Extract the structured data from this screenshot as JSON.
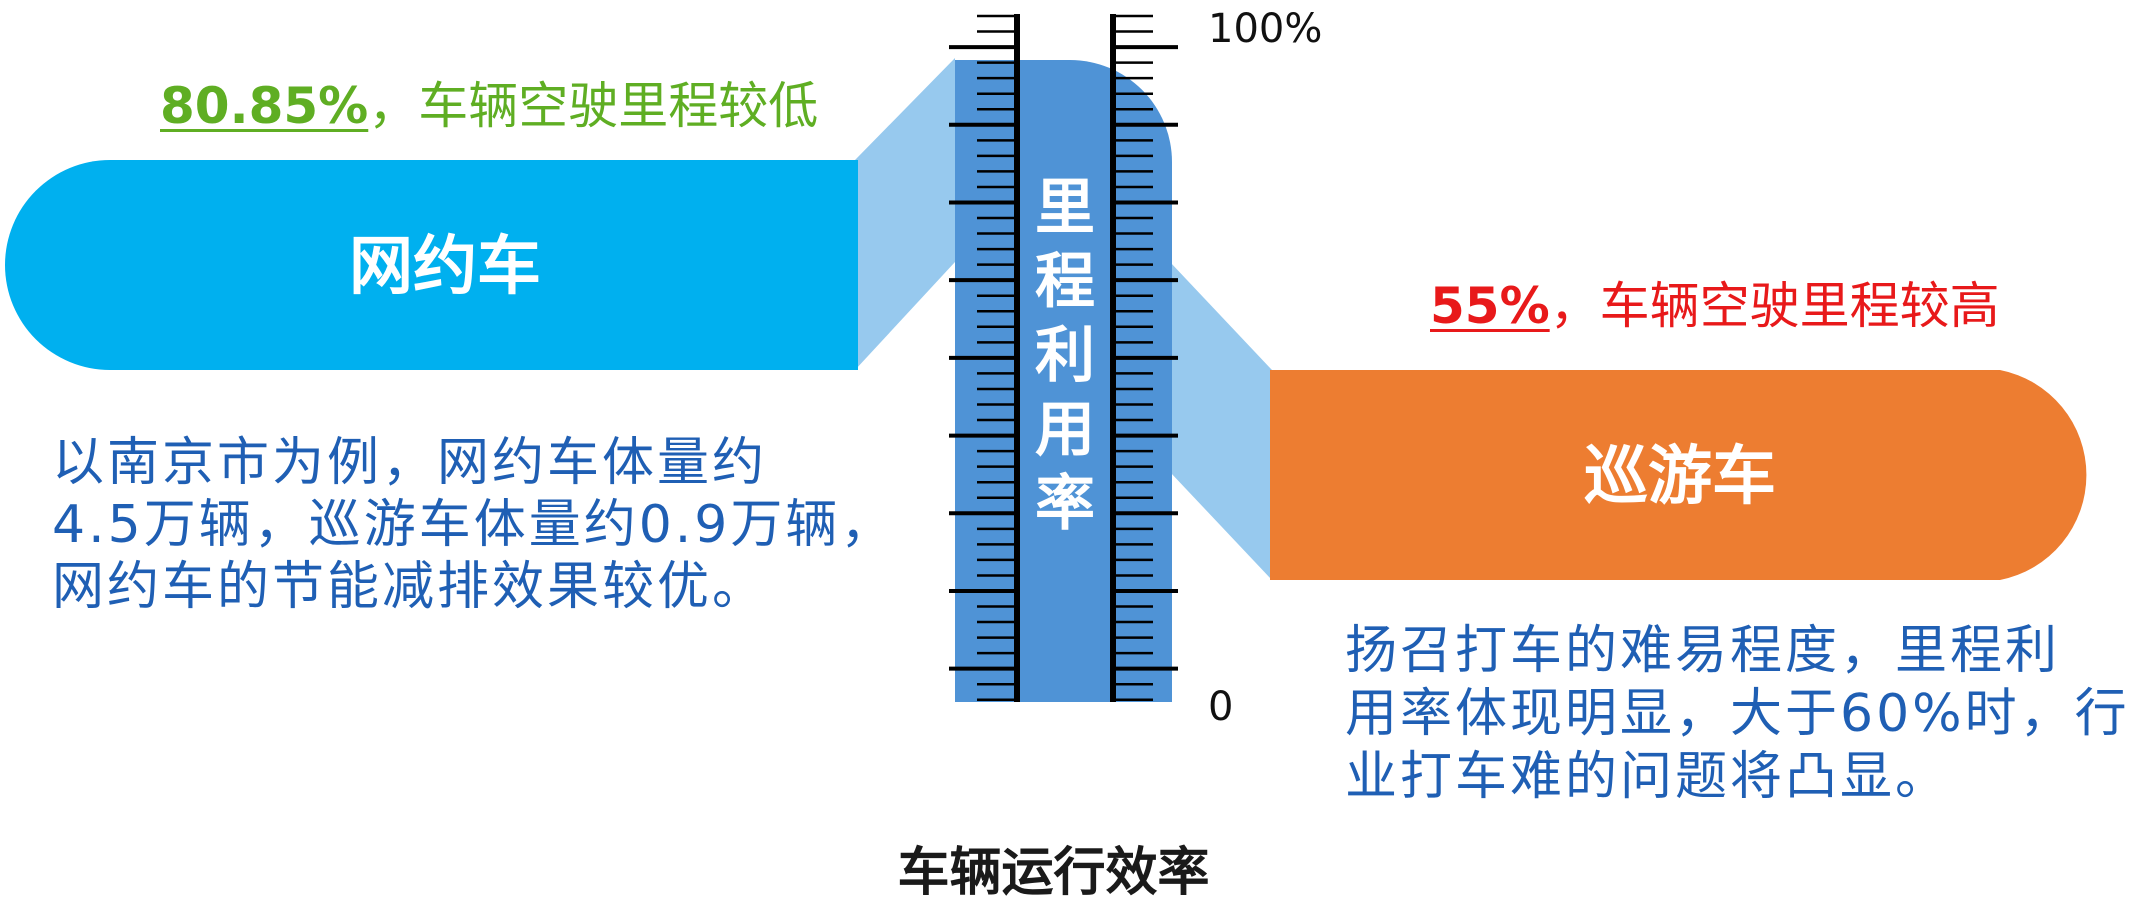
{
  "title": "车辆运行效率",
  "gauge": {
    "label_chars": [
      "里",
      "程",
      "利",
      "用",
      "率"
    ],
    "top_label": "100%",
    "bottom_label": "0"
  },
  "ride_hailing": {
    "name": "网约车",
    "stat_value": "80.85%",
    "stat_text": "，车辆空驶里程较低",
    "note_lines": [
      "以南京市为例，网约车体量约",
      "4.5万辆，巡游车体量约0.9万辆，",
      "网约车的节能减排效果较优。"
    ],
    "utilization": 80.85
  },
  "taxi": {
    "name": "巡游车",
    "stat_value": "55%",
    "stat_text": "，车辆空驶里程较高",
    "note_lines": [
      "扬召打车的难易程度，里程利",
      "用率体现明显，大于60%时，行",
      "业打车难的问题将凸显。"
    ],
    "utilization": 55
  },
  "colors": {
    "ride_hailing": "#00b0ef",
    "taxi": "#ed7d31",
    "gauge_fill": "#4f93d6",
    "connector": "#97c9ee",
    "note_text": "#1f5fb4",
    "stat_low": "#5fae23",
    "stat_high": "#e8191a"
  }
}
